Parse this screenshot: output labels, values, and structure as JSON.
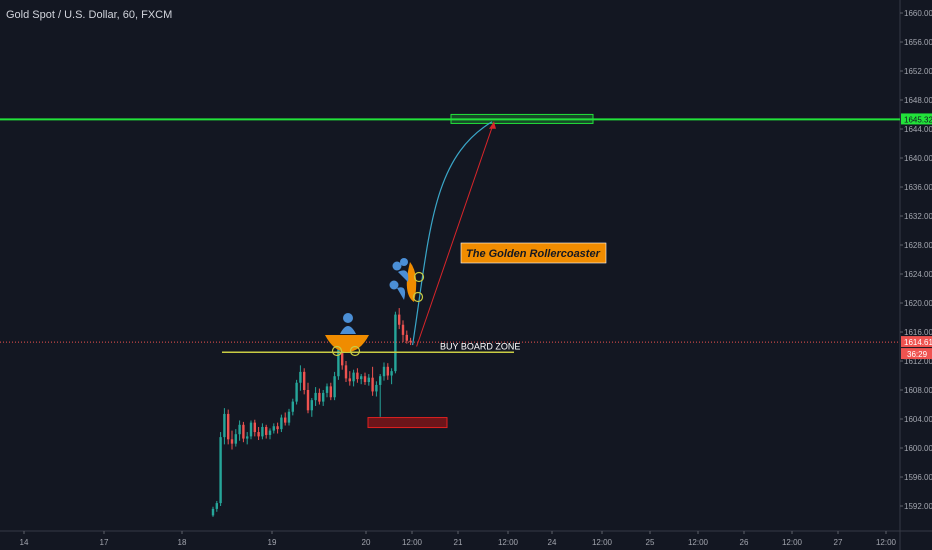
{
  "header": {
    "title": "Gold Spot / U.S. Dollar, 60, FXCM"
  },
  "colors": {
    "background": "#131722",
    "up": "#26a69a",
    "down": "#ef5350",
    "target_line": "#22e33a",
    "support_line": "#c8cc44",
    "price_line": "#ef5350",
    "price_badge": "#ef5350",
    "arrow": "#d8252a",
    "curve": "#3aa6c8",
    "label_bg": "#f08c00",
    "rider": "#4b8fd6",
    "axis_text": "#a3a6af"
  },
  "icons": [
    "rollercoaster-cart-icon",
    "rollercoaster-rider-icon"
  ],
  "chart_data": {
    "type": "candlestick",
    "title": "Gold Spot / U.S. Dollar, 60, FXCM",
    "ylim": [
      1590.5,
      1662.0
    ],
    "y_ticks": [
      "1592.00",
      "1596.00",
      "1600.00",
      "1604.00",
      "1608.00",
      "1612.00",
      "1616.00",
      "1620.00",
      "1624.00",
      "1628.00",
      "1632.00",
      "1636.00",
      "1640.00",
      "1644.00",
      "1648.00",
      "1652.00",
      "1656.00",
      "1660.00"
    ],
    "x_ticks": [
      "14",
      "17",
      "18",
      "19",
      "20",
      "12:00",
      "21",
      "12:00",
      "24",
      "12:00",
      "25",
      "12:00",
      "26",
      "12:00",
      "27",
      "12:00"
    ],
    "price_label": "1614.61",
    "countdown_label": "36:29",
    "target_label": "1645.32",
    "levels": {
      "target": 1645.32,
      "current_price": 1614.61,
      "support": 1613.2
    },
    "annotations": {
      "rollercoaster": "The Golden Rollercoaster",
      "buy_zone": "BUY BOARD ZONE"
    },
    "candles": [
      {
        "o": 1590.7,
        "h": 1591.9,
        "l": 1590.5,
        "c": 1591.6
      },
      {
        "o": 1591.6,
        "h": 1592.7,
        "l": 1591.2,
        "c": 1592.4
      },
      {
        "o": 1592.4,
        "h": 1602.2,
        "l": 1592.0,
        "c": 1601.5
      },
      {
        "o": 1601.5,
        "h": 1605.5,
        "l": 1600.5,
        "c": 1604.7
      },
      {
        "o": 1604.7,
        "h": 1605.3,
        "l": 1600.5,
        "c": 1601.2
      },
      {
        "o": 1601.2,
        "h": 1602.4,
        "l": 1599.8,
        "c": 1600.6
      },
      {
        "o": 1600.6,
        "h": 1602.6,
        "l": 1600.2,
        "c": 1601.9
      },
      {
        "o": 1601.9,
        "h": 1603.8,
        "l": 1601.0,
        "c": 1603.2
      },
      {
        "o": 1603.2,
        "h": 1603.6,
        "l": 1600.8,
        "c": 1601.3
      },
      {
        "o": 1601.3,
        "h": 1602.2,
        "l": 1600.5,
        "c": 1601.6
      },
      {
        "o": 1601.6,
        "h": 1603.8,
        "l": 1601.2,
        "c": 1603.5
      },
      {
        "o": 1603.5,
        "h": 1603.9,
        "l": 1601.6,
        "c": 1602.2
      },
      {
        "o": 1602.2,
        "h": 1602.9,
        "l": 1601.1,
        "c": 1601.6
      },
      {
        "o": 1601.6,
        "h": 1603.4,
        "l": 1601.2,
        "c": 1602.9
      },
      {
        "o": 1602.9,
        "h": 1603.2,
        "l": 1601.3,
        "c": 1601.8
      },
      {
        "o": 1601.8,
        "h": 1602.7,
        "l": 1601.2,
        "c": 1602.4
      },
      {
        "o": 1602.4,
        "h": 1603.4,
        "l": 1602.0,
        "c": 1603.0
      },
      {
        "o": 1603.0,
        "h": 1603.5,
        "l": 1602.0,
        "c": 1602.6
      },
      {
        "o": 1602.6,
        "h": 1604.6,
        "l": 1602.2,
        "c": 1604.2
      },
      {
        "o": 1604.2,
        "h": 1604.9,
        "l": 1603.1,
        "c": 1603.5
      },
      {
        "o": 1603.5,
        "h": 1605.4,
        "l": 1603.1,
        "c": 1605.0
      },
      {
        "o": 1605.0,
        "h": 1606.8,
        "l": 1604.5,
        "c": 1606.4
      },
      {
        "o": 1606.4,
        "h": 1609.4,
        "l": 1606.0,
        "c": 1609.0
      },
      {
        "o": 1609.0,
        "h": 1611.4,
        "l": 1607.9,
        "c": 1610.5
      },
      {
        "o": 1610.5,
        "h": 1611.0,
        "l": 1607.4,
        "c": 1608.0
      },
      {
        "o": 1608.0,
        "h": 1609.0,
        "l": 1604.8,
        "c": 1605.2
      },
      {
        "o": 1605.2,
        "h": 1606.9,
        "l": 1604.3,
        "c": 1606.6
      },
      {
        "o": 1606.6,
        "h": 1608.4,
        "l": 1605.8,
        "c": 1607.6
      },
      {
        "o": 1607.6,
        "h": 1608.2,
        "l": 1606.0,
        "c": 1606.4
      },
      {
        "o": 1606.4,
        "h": 1608.0,
        "l": 1605.8,
        "c": 1607.6
      },
      {
        "o": 1607.6,
        "h": 1608.9,
        "l": 1607.0,
        "c": 1608.5
      },
      {
        "o": 1608.5,
        "h": 1609.0,
        "l": 1606.6,
        "c": 1607.0
      },
      {
        "o": 1607.0,
        "h": 1610.5,
        "l": 1606.6,
        "c": 1609.9
      },
      {
        "o": 1609.9,
        "h": 1614.2,
        "l": 1609.4,
        "c": 1613.6
      },
      {
        "o": 1613.6,
        "h": 1614.0,
        "l": 1610.8,
        "c": 1611.4
      },
      {
        "o": 1611.4,
        "h": 1612.0,
        "l": 1609.1,
        "c": 1609.6
      },
      {
        "o": 1609.6,
        "h": 1610.6,
        "l": 1608.6,
        "c": 1609.2
      },
      {
        "o": 1609.2,
        "h": 1610.8,
        "l": 1608.5,
        "c": 1610.4
      },
      {
        "o": 1610.4,
        "h": 1611.0,
        "l": 1609.0,
        "c": 1609.5
      },
      {
        "o": 1609.5,
        "h": 1610.2,
        "l": 1608.8,
        "c": 1609.9
      },
      {
        "o": 1609.9,
        "h": 1610.4,
        "l": 1608.7,
        "c": 1609.1
      },
      {
        "o": 1609.1,
        "h": 1610.2,
        "l": 1608.6,
        "c": 1609.7
      },
      {
        "o": 1609.7,
        "h": 1611.2,
        "l": 1607.2,
        "c": 1607.8
      },
      {
        "o": 1607.8,
        "h": 1609.2,
        "l": 1607.1,
        "c": 1608.7
      },
      {
        "o": 1608.7,
        "h": 1610.2,
        "l": 1604.3,
        "c": 1609.9
      },
      {
        "o": 1609.9,
        "h": 1611.8,
        "l": 1609.3,
        "c": 1611.2
      },
      {
        "o": 1611.2,
        "h": 1611.7,
        "l": 1609.4,
        "c": 1610.0
      },
      {
        "o": 1610.0,
        "h": 1611.0,
        "l": 1608.8,
        "c": 1610.6
      },
      {
        "o": 1610.6,
        "h": 1618.8,
        "l": 1610.3,
        "c": 1618.4
      },
      {
        "o": 1618.4,
        "h": 1619.3,
        "l": 1616.4,
        "c": 1617.0
      },
      {
        "o": 1617.0,
        "h": 1617.6,
        "l": 1614.6,
        "c": 1615.6
      },
      {
        "o": 1615.6,
        "h": 1616.2,
        "l": 1614.4,
        "c": 1614.8
      },
      {
        "o": 1614.8,
        "h": 1615.2,
        "l": 1614.2,
        "c": 1614.6
      }
    ]
  }
}
